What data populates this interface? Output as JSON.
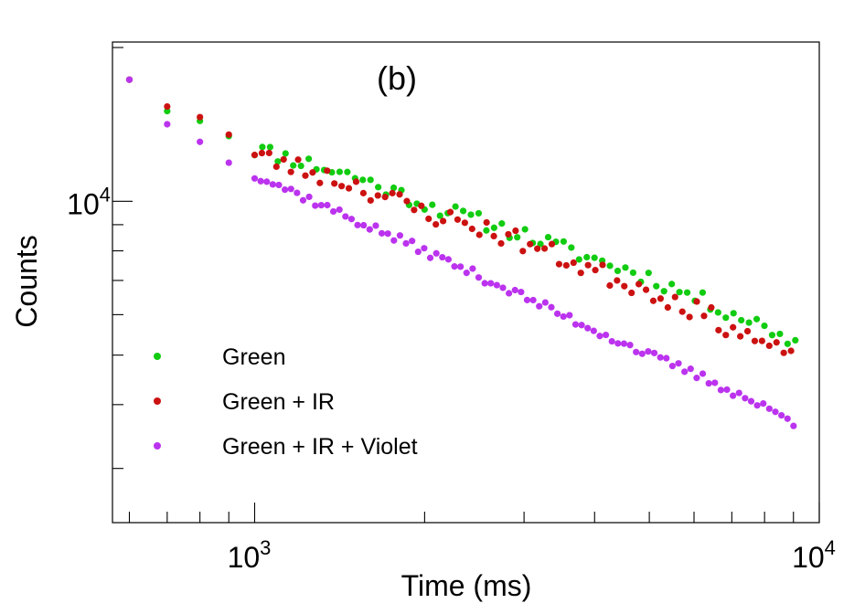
{
  "chart_data": {
    "type": "scatter",
    "panel_label": "(b)",
    "xlabel": "Time (ms)",
    "ylabel": "Counts",
    "xscale": "log",
    "yscale": "log",
    "xlim": [
      560,
      10000
    ],
    "ylim": [
      2350,
      20500
    ],
    "x_tick_labels": [
      {
        "value": 1000,
        "base": "10",
        "exp": "3"
      },
      {
        "value": 10000,
        "base": "10",
        "exp": "4"
      }
    ],
    "y_tick_labels": [
      {
        "value": 10000,
        "base": "10",
        "exp": "4"
      }
    ],
    "legend_position": "bottom-left",
    "grid": false,
    "series": [
      {
        "name": "Green",
        "color": "#11cc11",
        "anchors": [
          [
            600,
            17300
          ],
          [
            700,
            15300
          ],
          [
            800,
            14600
          ],
          [
            1000,
            12700
          ],
          [
            1500,
            11200
          ],
          [
            2000,
            9900
          ],
          [
            2500,
            9150
          ],
          [
            3000,
            8600
          ],
          [
            4000,
            7700
          ],
          [
            5000,
            7100
          ],
          [
            6000,
            6500
          ],
          [
            7000,
            6050
          ],
          [
            8000,
            5700
          ],
          [
            9000,
            5300
          ]
        ],
        "noise": 0.035,
        "step": 1.032,
        "seed": 11
      },
      {
        "name": "Green + IR",
        "color": "#cc1111",
        "anchors": [
          [
            600,
            17300
          ],
          [
            700,
            15700
          ],
          [
            800,
            14800
          ],
          [
            1000,
            12300
          ],
          [
            1500,
            10800
          ],
          [
            2000,
            9500
          ],
          [
            2500,
            8900
          ],
          [
            3000,
            8300
          ],
          [
            4000,
            7300
          ],
          [
            5000,
            6700
          ],
          [
            6000,
            6150
          ],
          [
            7000,
            5650
          ],
          [
            8000,
            5250
          ],
          [
            9000,
            4850
          ]
        ],
        "noise": 0.045,
        "step": 1.03,
        "seed": 23
      },
      {
        "name": "Green + IR + Violet",
        "color": "#bb33ee",
        "anchors": [
          [
            600,
            17300
          ],
          [
            700,
            14300
          ],
          [
            800,
            13000
          ],
          [
            1000,
            11300
          ],
          [
            1500,
            9200
          ],
          [
            2000,
            8000
          ],
          [
            3000,
            6500
          ],
          [
            4000,
            5600
          ],
          [
            5000,
            5000
          ],
          [
            6000,
            4600
          ],
          [
            7000,
            4250
          ],
          [
            8000,
            3950
          ],
          [
            9000,
            3700
          ]
        ],
        "noise": 0.02,
        "step": 1.025,
        "seed": 37
      }
    ]
  }
}
